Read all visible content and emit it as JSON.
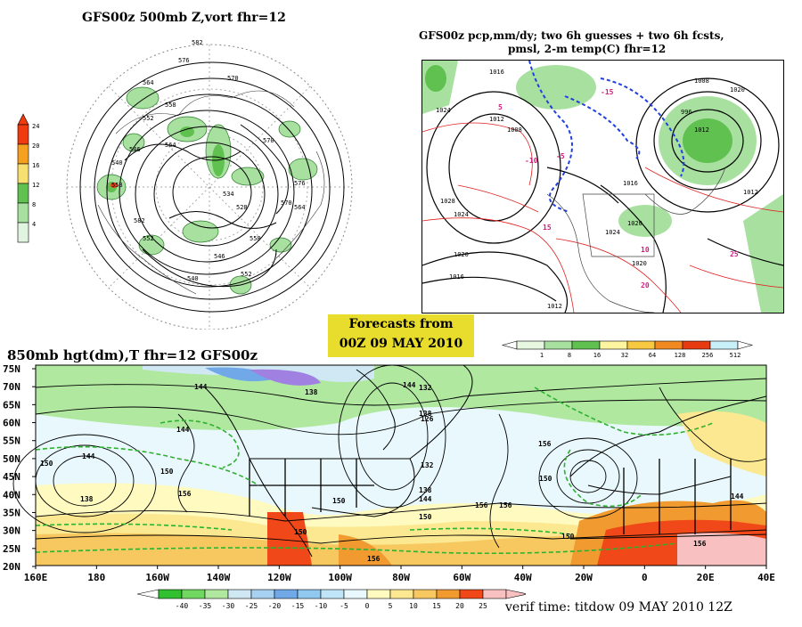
{
  "top_left": {
    "title": "GFS00z  500mb Z,vort    fhr=12",
    "colorbar_ticks": [
      "24",
      "20",
      "16",
      "12",
      "8",
      "4"
    ],
    "colorbar_colors": [
      "#f03a10",
      "#f6a020",
      "#f8e070",
      "#60c050",
      "#a8e0a0",
      "#e0f4e0"
    ],
    "contour_labels": [
      "582",
      "576",
      "570",
      "564",
      "558",
      "552",
      "546",
      "540",
      "534",
      "528",
      "570",
      "564",
      "558",
      "576",
      "582",
      "570",
      "564",
      "558",
      "552",
      "546",
      "552",
      "540"
    ]
  },
  "top_right": {
    "title_line1": "GFS00z pcp,mm/dy; two 6h guesses + two 6h fcsts,",
    "title_line2": "pmsl, 2-m temp(C)   fhr=12",
    "pressure_labels": [
      "1024",
      "1016",
      "1012",
      "1008",
      "1028",
      "1024",
      "1020",
      "1016",
      "1012",
      "1016",
      "1020",
      "1024",
      "1020",
      "1012",
      "996",
      "1008",
      "1012",
      "1020"
    ],
    "temp_labels": [
      "5",
      "-5",
      "10",
      "15",
      "20",
      "25",
      "-10",
      "-15"
    ],
    "colorbar_ticks": [
      "1",
      "8",
      "16",
      "32",
      "64",
      "128",
      "256",
      "512"
    ],
    "colorbar_colors": [
      "#e8f8e0",
      "#a8e0a0",
      "#60c050",
      "#fff4a0",
      "#f8c840",
      "#f08a20",
      "#e83a10",
      "#c8f0f8"
    ]
  },
  "banner": {
    "line1": "Forecasts from",
    "line2": "00Z 09 MAY 2010"
  },
  "bottom": {
    "title": "850mb hgt(dm),T  fhr=12 GFS00z",
    "lat_labels": [
      "75N",
      "70N",
      "65N",
      "60N",
      "55N",
      "50N",
      "45N",
      "40N",
      "35N",
      "30N",
      "25N",
      "20N"
    ],
    "lon_labels": [
      "160E",
      "180",
      "160W",
      "140W",
      "120W",
      "100W",
      "80W",
      "60W",
      "40W",
      "20W",
      "0",
      "20E",
      "40E"
    ],
    "height_labels": [
      "144",
      "138",
      "132",
      "126",
      "144",
      "150",
      "156",
      "144",
      "150",
      "156",
      "138",
      "150",
      "156",
      "150",
      "144",
      "138",
      "132",
      "150",
      "156",
      "144",
      "138",
      "156",
      "150",
      "156",
      "144",
      "150"
    ],
    "colorbar_ticks": [
      "-40",
      "-35",
      "-30",
      "-25",
      "-20",
      "-15",
      "-10",
      "-5",
      "0",
      "5",
      "10",
      "15",
      "20",
      "25"
    ],
    "colorbar_colors": [
      "#30c030",
      "#70d860",
      "#b0e8a0",
      "#cfe8f4",
      "#a8d0f0",
      "#70a8e8",
      "#90c8f0",
      "#c0e4f8",
      "#e8f8fc",
      "#fffac0",
      "#fbe890",
      "#f8c860",
      "#f09a30",
      "#f04818",
      "#f8c0c0"
    ],
    "verif_time": "verif time: titdow 09 MAY 2010 12Z"
  }
}
